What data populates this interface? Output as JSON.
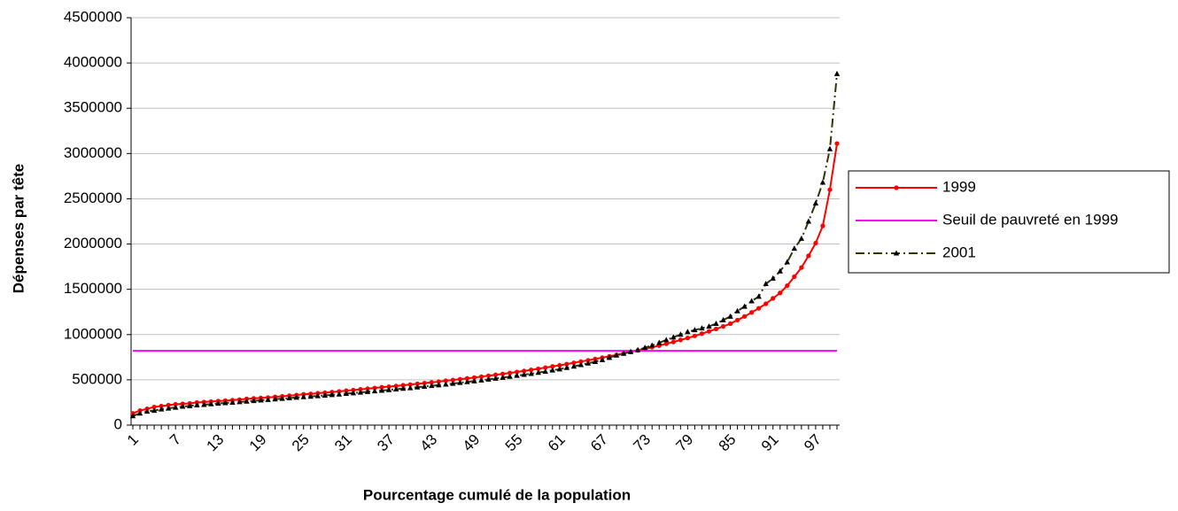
{
  "chart_data": {
    "type": "line",
    "ylabel": "Dépenses par tête",
    "xlabel": "Pourcentage cumulé de la population",
    "categories": [
      1,
      null,
      null,
      null,
      null,
      null,
      7,
      null,
      null,
      null,
      null,
      null,
      13,
      null,
      null,
      null,
      null,
      null,
      19,
      null,
      null,
      null,
      null,
      null,
      25,
      null,
      null,
      null,
      null,
      null,
      31,
      null,
      null,
      null,
      null,
      null,
      37,
      null,
      null,
      null,
      null,
      null,
      43,
      null,
      null,
      null,
      null,
      null,
      49,
      null,
      null,
      null,
      null,
      null,
      55,
      null,
      null,
      null,
      null,
      null,
      61,
      null,
      null,
      null,
      null,
      null,
      67,
      null,
      null,
      null,
      null,
      null,
      73,
      null,
      null,
      null,
      null,
      null,
      79,
      null,
      null,
      null,
      null,
      null,
      85,
      null,
      null,
      null,
      null,
      null,
      91,
      null,
      null,
      null,
      null,
      null,
      97,
      null,
      null,
      null
    ],
    "series": [
      {
        "name": "1999",
        "color": "#ff0000",
        "marker": "circle",
        "dash": "solid",
        "values": [
          130000,
          160000,
          180000,
          200000,
          210000,
          220000,
          230000,
          235000,
          240000,
          250000,
          255000,
          260000,
          265000,
          270000,
          275000,
          282000,
          290000,
          295000,
          300000,
          305000,
          312000,
          318000,
          325000,
          332000,
          340000,
          345000,
          352000,
          358000,
          365000,
          372000,
          380000,
          387000,
          395000,
          402000,
          410000,
          418000,
          425000,
          432000,
          440000,
          448000,
          456000,
          464000,
          472000,
          480000,
          490000,
          498000,
          507000,
          516000,
          525000,
          535000,
          545000,
          555000,
          565000,
          576000,
          587000,
          598000,
          610000,
          622000,
          635000,
          648000,
          660000,
          674000,
          688000,
          702000,
          716000,
          730000,
          745000,
          760000,
          776000,
          792000,
          808000,
          825000,
          842000,
          860000,
          878000,
          898000,
          918000,
          940000,
          962000,
          985000,
          1010000,
          1035000,
          1062000,
          1090000,
          1120000,
          1160000,
          1200000,
          1245000,
          1290000,
          1340000,
          1400000,
          1460000,
          1540000,
          1640000,
          1740000,
          1870000,
          2010000,
          2200000,
          2600000,
          3110000
        ]
      },
      {
        "name": "Seuil de pauvreté en 1999",
        "color": "#ff00ff",
        "marker": "none",
        "dash": "solid",
        "values": [
          820000,
          820000,
          820000,
          820000,
          820000,
          820000,
          820000,
          820000,
          820000,
          820000,
          820000,
          820000,
          820000,
          820000,
          820000,
          820000,
          820000,
          820000,
          820000,
          820000,
          820000,
          820000,
          820000,
          820000,
          820000,
          820000,
          820000,
          820000,
          820000,
          820000,
          820000,
          820000,
          820000,
          820000,
          820000,
          820000,
          820000,
          820000,
          820000,
          820000,
          820000,
          820000,
          820000,
          820000,
          820000,
          820000,
          820000,
          820000,
          820000,
          820000,
          820000,
          820000,
          820000,
          820000,
          820000,
          820000,
          820000,
          820000,
          820000,
          820000,
          820000,
          820000,
          820000,
          820000,
          820000,
          820000,
          820000,
          820000,
          820000,
          820000,
          820000,
          820000,
          820000,
          820000,
          820000,
          820000,
          820000,
          820000,
          820000,
          820000,
          820000,
          820000,
          820000,
          820000,
          820000,
          820000,
          820000,
          820000,
          820000,
          820000,
          820000,
          820000,
          820000,
          820000,
          820000,
          820000,
          820000,
          820000,
          820000,
          820000
        ]
      },
      {
        "name": "2001",
        "color": "#333300",
        "marker": "triangle",
        "dash": "dashdot",
        "values": [
          100000,
          130000,
          150000,
          160000,
          175000,
          185000,
          195000,
          205000,
          212000,
          220000,
          225000,
          232000,
          238000,
          244000,
          250000,
          256000,
          262000,
          268000,
          274000,
          280000,
          286000,
          292000,
          298000,
          304000,
          310000,
          316000,
          322000,
          328000,
          334000,
          340000,
          347000,
          354000,
          361000,
          368000,
          375000,
          382000,
          389000,
          396000,
          403000,
          410000,
          418000,
          426000,
          434000,
          442000,
          450000,
          459000,
          468000,
          477000,
          486000,
          495000,
          505000,
          515000,
          525000,
          535000,
          546000,
          557000,
          568000,
          580000,
          592000,
          605000,
          618000,
          633000,
          648000,
          665000,
          682000,
          700000,
          720000,
          745000,
          770000,
          790000,
          810000,
          830000,
          855000,
          880000,
          910000,
          940000,
          970000,
          1000000,
          1030000,
          1050000,
          1070000,
          1090000,
          1120000,
          1160000,
          1200000,
          1260000,
          1310000,
          1370000,
          1420000,
          1560000,
          1620000,
          1700000,
          1800000,
          1950000,
          2060000,
          2250000,
          2450000,
          2680000,
          3050000,
          3880000
        ]
      }
    ],
    "ylim": [
      0,
      4500000
    ],
    "yticks": [
      0,
      500000,
      1000000,
      1500000,
      2000000,
      2500000,
      3000000,
      3500000,
      4000000,
      4500000
    ],
    "grid": true,
    "legend": "right"
  }
}
